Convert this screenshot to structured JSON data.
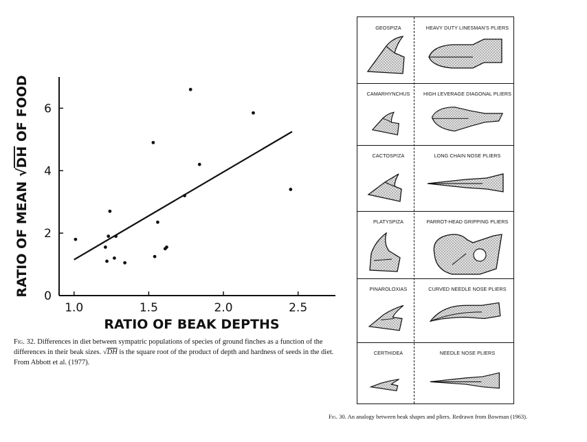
{
  "chart_data": {
    "type": "scatter",
    "xlabel": "RATIO OF BEAK DEPTHS",
    "ylabel_prefix": "RATIO OF MEAN ",
    "ylabel_sqrt": "DH",
    "ylabel_suffix": " OF FOOD",
    "xlim": [
      0.9,
      2.75
    ],
    "ylim": [
      0,
      7
    ],
    "xticks": [
      1.0,
      1.5,
      2.0,
      2.5
    ],
    "xtick_labels": [
      "1.0",
      "1.5",
      "2.0",
      "2.5"
    ],
    "yticks": [
      0,
      2,
      4,
      6
    ],
    "ytick_labels": [
      "0",
      "2",
      "4",
      "6"
    ],
    "grid": false,
    "points": [
      {
        "x": 1.01,
        "y": 1.8
      },
      {
        "x": 1.21,
        "y": 1.55
      },
      {
        "x": 1.22,
        "y": 1.1
      },
      {
        "x": 1.23,
        "y": 1.9
      },
      {
        "x": 1.24,
        "y": 2.7
      },
      {
        "x": 1.27,
        "y": 1.2
      },
      {
        "x": 1.28,
        "y": 1.9
      },
      {
        "x": 1.34,
        "y": 1.05
      },
      {
        "x": 1.53,
        "y": 4.9
      },
      {
        "x": 1.54,
        "y": 1.25
      },
      {
        "x": 1.56,
        "y": 2.35
      },
      {
        "x": 1.61,
        "y": 1.5
      },
      {
        "x": 1.62,
        "y": 1.55
      },
      {
        "x": 1.74,
        "y": 3.2
      },
      {
        "x": 1.78,
        "y": 6.6
      },
      {
        "x": 1.84,
        "y": 4.2
      },
      {
        "x": 2.2,
        "y": 5.85
      },
      {
        "x": 2.45,
        "y": 3.4
      }
    ],
    "fit_line": {
      "x": [
        1.0,
        2.46
      ],
      "y": [
        1.15,
        5.25
      ]
    }
  },
  "fig32_caption": {
    "prefix": "Fig. 32.",
    "text_1": " Differences in diet between sympatric populations of species of ground finches as a function of the differences in their beak sizes. ",
    "sqrt_symbol": "√",
    "sqrt_term": "DH",
    "text_2": " is the square root of the product of depth and hardness of seeds in the diet. From Abbott et al. (1977)."
  },
  "fig30_caption": {
    "prefix": "Fig. 30.",
    "text": " An analogy between beak shapes and pliers. Redrawn from Bowman (1963)."
  },
  "plier_rows": [
    {
      "beak": "GEOSPIZA",
      "plier": "HEAVY DUTY LINESMAN'S PLIERS"
    },
    {
      "beak": "CAMARHYNCHUS",
      "plier": "HIGH LEVERAGE DIAGONAL PLIERS"
    },
    {
      "beak": "CACTOSPIZA",
      "plier": "LONG CHAIN NOSE PLIERS"
    },
    {
      "beak": "PLATYSPIZA",
      "plier": "PARROT-HEAD GRIPPING PLIERS"
    },
    {
      "beak": "PINAROLOXIAS",
      "plier": "CURVED NEEDLE NOSE PLIERS"
    },
    {
      "beak": "CERTHIDEA",
      "plier": "NEEDLE NOSE PLIERS"
    }
  ]
}
